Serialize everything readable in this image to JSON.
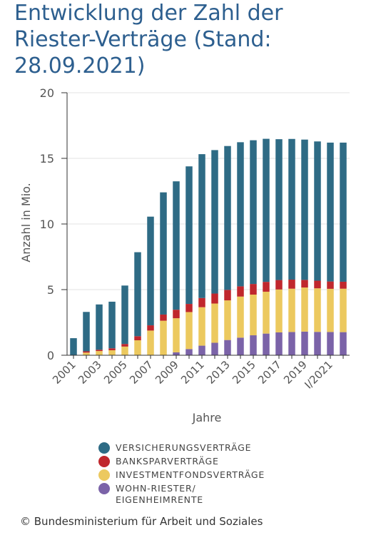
{
  "page": {
    "title": "Entwicklung der Zahl der Riester-Verträge (Stand: 28.09.2021)",
    "copyright": "© Bundesministerium für Arbeit und Soziales"
  },
  "colors": {
    "versicherung": "#2e6b85",
    "bankspar": "#c0272d",
    "investment": "#ecc95f",
    "wohn": "#7b63a8",
    "title": "#2d5f8f"
  },
  "chart_data": {
    "type": "bar",
    "stacked": true,
    "xlabel": "Jahre",
    "ylabel": "Anzahl in Mio.",
    "ylim": [
      0,
      20
    ],
    "yticks": [
      0,
      5,
      10,
      15,
      20
    ],
    "grid": true,
    "legend_position": "bottom",
    "categories": [
      "2001",
      "2002",
      "2003",
      "2004",
      "2005",
      "2006",
      "2007",
      "2008",
      "2009",
      "2010",
      "2011",
      "2012",
      "2013",
      "2014",
      "2015",
      "2016",
      "2017",
      "2018",
      "2019",
      "2020",
      "I/2021",
      "II/2021"
    ],
    "tick_labels": [
      "2001",
      "",
      "2003",
      "",
      "2005",
      "",
      "2007",
      "",
      "2009",
      "",
      "2011",
      "",
      "2013",
      "",
      "2015",
      "",
      "2017",
      "",
      "2019",
      "",
      "I/2021",
      ""
    ],
    "series": [
      {
        "name": "WOHN-RIESTER/\nEIGENHEIMRENTE",
        "color_key": "wohn",
        "values": [
          0,
          0,
          0,
          0,
          0,
          0,
          0,
          0.02,
          0.22,
          0.47,
          0.73,
          0.95,
          1.16,
          1.34,
          1.52,
          1.65,
          1.74,
          1.77,
          1.8,
          1.78,
          1.77,
          1.76
        ]
      },
      {
        "name": "INVESTMENTFONDSVERTRÄGE",
        "color_key": "investment",
        "values": [
          0,
          0.2,
          0.32,
          0.38,
          0.66,
          1.14,
          1.88,
          2.61,
          2.6,
          2.82,
          2.93,
          2.99,
          3.02,
          3.13,
          3.1,
          3.19,
          3.27,
          3.3,
          3.36,
          3.32,
          3.29,
          3.31
        ]
      },
      {
        "name": "BANKSPARVERTRÄGE",
        "color_key": "bankspar",
        "values": [
          0,
          0.1,
          0.1,
          0.15,
          0.2,
          0.31,
          0.4,
          0.47,
          0.65,
          0.62,
          0.7,
          0.76,
          0.8,
          0.78,
          0.81,
          0.75,
          0.72,
          0.69,
          0.58,
          0.58,
          0.56,
          0.53
        ]
      },
      {
        "name": "VERSICHERUNGSVERTRÄGE",
        "color_key": "versicherung",
        "values": [
          1.3,
          3.0,
          3.45,
          3.55,
          4.45,
          6.4,
          8.28,
          9.31,
          9.78,
          10.48,
          10.96,
          10.93,
          10.96,
          10.98,
          10.95,
          10.9,
          10.73,
          10.72,
          10.69,
          10.61,
          10.58,
          10.6
        ]
      }
    ],
    "legend_order": [
      "versicherung",
      "bankspar",
      "investment",
      "wohn"
    ]
  }
}
